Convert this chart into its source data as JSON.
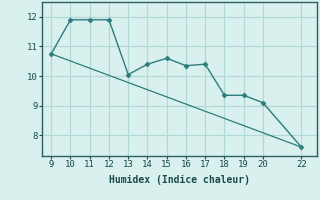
{
  "x": [
    9,
    10,
    11,
    12,
    13,
    14,
    15,
    16,
    17,
    18,
    19,
    20,
    22
  ],
  "y": [
    10.75,
    11.9,
    11.9,
    11.9,
    10.05,
    10.4,
    10.6,
    10.35,
    10.4,
    9.35,
    9.35,
    9.1,
    7.6
  ],
  "trend_x": [
    9,
    22
  ],
  "trend_y": [
    10.75,
    7.6
  ],
  "xlabel": "Humidex (Indice chaleur)",
  "xlim": [
    8.5,
    22.8
  ],
  "ylim": [
    7.3,
    12.5
  ],
  "xticks": [
    9,
    10,
    11,
    12,
    13,
    14,
    15,
    16,
    17,
    18,
    19,
    20,
    22
  ],
  "yticks": [
    8,
    9,
    10,
    11,
    12
  ],
  "line_color": "#2e7d7d",
  "bg_color": "#d8f0ee",
  "grid_color": "#b0d8d4",
  "axis_color": "#2e6060"
}
